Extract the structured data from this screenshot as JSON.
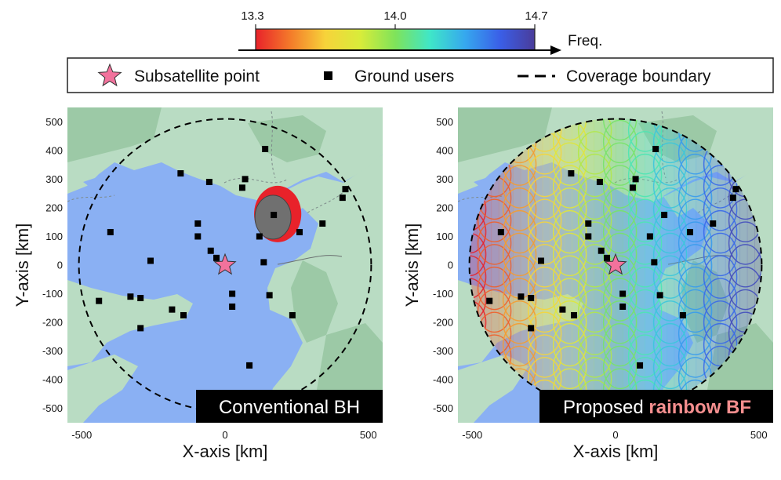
{
  "colorbar": {
    "ticks": [
      "13.3",
      "14.0",
      "14.7"
    ],
    "tick_values": [
      13.3,
      14.0,
      14.7
    ],
    "label": "Freq.",
    "colors": [
      "#e8222a",
      "#f47b2a",
      "#f7d33a",
      "#d8ec3a",
      "#7fe35a",
      "#3fe6c8",
      "#36a8ee",
      "#3a5fe8",
      "#4a3c9a"
    ]
  },
  "legend": {
    "subsatellite": "Subsatellite point",
    "ground_users": "Ground users",
    "coverage": "Coverage boundary"
  },
  "colors": {
    "sea": "#8ab0f3",
    "land": "#b9dcc3",
    "forest": "#9cc9a6",
    "star": "#f2729c",
    "marker": "#000000",
    "label_bg": "#000000",
    "accent_text": "#f58f8f"
  },
  "chart_data": [
    {
      "type": "scatter",
      "title": "Conventional BH",
      "xlabel": "X-axis [km]",
      "ylabel": "Y-axis [km]",
      "xlim": [
        -550,
        550
      ],
      "ylim": [
        -550,
        550
      ],
      "xticks": [
        -500,
        0,
        500
      ],
      "yticks": [
        500,
        400,
        300,
        200,
        100,
        0,
        -100,
        -200,
        -300,
        -400,
        -500
      ],
      "coverage_radius_km": 510,
      "subsatellite_point": [
        0,
        0
      ],
      "active_beam_center_km": [
        170,
        170
      ],
      "ground_users": [
        [
          -400,
          115
        ],
        [
          -155,
          320
        ],
        [
          -55,
          290
        ],
        [
          -95,
          145
        ],
        [
          -95,
          100
        ],
        [
          -50,
          50
        ],
        [
          -30,
          25
        ],
        [
          70,
          300
        ],
        [
          60,
          270
        ],
        [
          140,
          405
        ],
        [
          170,
          175
        ],
        [
          120,
          100
        ],
        [
          260,
          115
        ],
        [
          340,
          145
        ],
        [
          420,
          265
        ],
        [
          410,
          235
        ],
        [
          -260,
          15
        ],
        [
          -330,
          -110
        ],
        [
          -295,
          -115
        ],
        [
          -440,
          -125
        ],
        [
          -295,
          -220
        ],
        [
          -185,
          -155
        ],
        [
          -145,
          -175
        ],
        [
          25,
          -145
        ],
        [
          25,
          -100
        ],
        [
          135,
          10
        ],
        [
          155,
          -105
        ],
        [
          235,
          -175
        ],
        [
          85,
          -350
        ]
      ]
    },
    {
      "type": "scatter",
      "title": "Proposed rainbow BF",
      "title_plain": "Proposed",
      "title_accent": "rainbow BF",
      "xlabel": "X-axis [km]",
      "ylabel": "Y-axis [km]",
      "xlim": [
        -550,
        550
      ],
      "ylim": [
        -550,
        550
      ],
      "xticks": [
        -500,
        0,
        500
      ],
      "yticks": [
        500,
        400,
        300,
        200,
        100,
        0,
        -100,
        -200,
        -300,
        -400,
        -500
      ],
      "coverage_radius_km": 510,
      "subsatellite_point": [
        0,
        0
      ],
      "ground_users": [
        [
          -400,
          115
        ],
        [
          -155,
          320
        ],
        [
          -55,
          290
        ],
        [
          -95,
          145
        ],
        [
          -95,
          100
        ],
        [
          -50,
          50
        ],
        [
          -30,
          25
        ],
        [
          70,
          300
        ],
        [
          60,
          270
        ],
        [
          140,
          405
        ],
        [
          170,
          175
        ],
        [
          120,
          100
        ],
        [
          260,
          115
        ],
        [
          340,
          145
        ],
        [
          420,
          265
        ],
        [
          410,
          235
        ],
        [
          -260,
          15
        ],
        [
          -330,
          -110
        ],
        [
          -295,
          -115
        ],
        [
          -440,
          -125
        ],
        [
          -295,
          -220
        ],
        [
          -185,
          -155
        ],
        [
          -145,
          -175
        ],
        [
          25,
          -145
        ],
        [
          25,
          -100
        ],
        [
          135,
          10
        ],
        [
          155,
          -105
        ],
        [
          235,
          -175
        ],
        [
          85,
          -350
        ]
      ]
    }
  ]
}
